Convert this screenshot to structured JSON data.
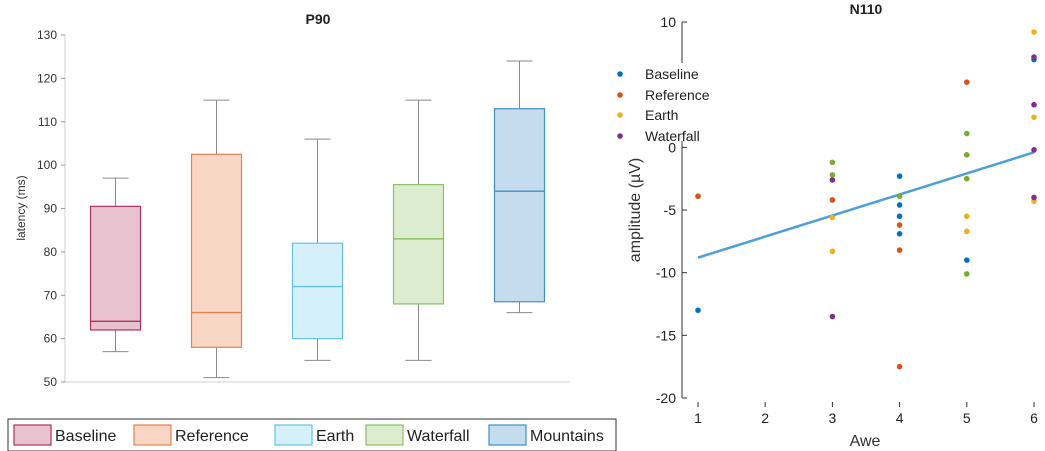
{
  "chart_data": [
    {
      "type": "box",
      "title": "P90",
      "ylabel": "latency (ms)",
      "ylim": [
        50,
        130
      ],
      "yticks": [
        50,
        60,
        70,
        80,
        90,
        100,
        110,
        120,
        130
      ],
      "grid": false,
      "legend_position": "bottom",
      "categories": [
        "Baseline",
        "Reference",
        "Earth",
        "Waterfall",
        "Mountains"
      ],
      "boxes": [
        {
          "name": "Baseline",
          "min": 57,
          "q1": 62,
          "median": 64,
          "q3": 90.5,
          "max": 97,
          "color": "#b5315a",
          "fill": "#e8c3cf"
        },
        {
          "name": "Reference",
          "min": 51,
          "q1": 58,
          "median": 66,
          "q3": 102.5,
          "max": 115,
          "color": "#e8804f",
          "fill": "#f8d6c6"
        },
        {
          "name": "Earth",
          "min": 55,
          "q1": 60,
          "median": 72,
          "q3": 82,
          "max": 106,
          "color": "#63c2e6",
          "fill": "#d6f0fb"
        },
        {
          "name": "Waterfall",
          "min": 55,
          "q1": 68,
          "median": 83,
          "q3": 95.5,
          "max": 115,
          "color": "#8cc063",
          "fill": "#dcedcf"
        },
        {
          "name": "Mountains",
          "min": 66,
          "q1": 68.5,
          "median": 94,
          "q3": 113,
          "max": 124,
          "color": "#3f8fc4",
          "fill": "#c4dcee"
        }
      ]
    },
    {
      "type": "scatter",
      "title": "N110",
      "xlabel": "Awe",
      "ylabel": "amplitude (µV)",
      "xlim": [
        1,
        6
      ],
      "ylim": [
        -20,
        10
      ],
      "xticks": [
        1,
        2,
        3,
        4,
        5,
        6
      ],
      "yticks": [
        -20,
        -15,
        -10,
        -5,
        0,
        5,
        10
      ],
      "grid": false,
      "legend_position": "top-left",
      "series": [
        {
          "name": "Baseline",
          "color": "#0072bd",
          "points": [
            [
              1,
              -13
            ],
            [
              4,
              -2.3
            ],
            [
              4,
              -4.6
            ],
            [
              4,
              -5.5
            ],
            [
              4,
              -6.9
            ],
            [
              5,
              -9
            ],
            [
              6,
              7
            ]
          ]
        },
        {
          "name": "Reference",
          "color": "#d95319",
          "points": [
            [
              1,
              -3.9
            ],
            [
              3,
              -4.2
            ],
            [
              4,
              -6.2
            ],
            [
              4,
              -8.2
            ],
            [
              4,
              -17.5
            ],
            [
              5,
              5.2
            ]
          ]
        },
        {
          "name": "Earth",
          "color": "#edb120",
          "points": [
            [
              3,
              -5.6
            ],
            [
              3,
              -8.3
            ],
            [
              5,
              -5.5
            ],
            [
              5,
              -6.7
            ],
            [
              6,
              9.2
            ],
            [
              6,
              2.4
            ],
            [
              6,
              -4.3
            ]
          ]
        },
        {
          "name": "Waterfall",
          "color": "#7e2f8e",
          "points": [
            [
              3,
              -2.6
            ],
            [
              3,
              -13.5
            ],
            [
              6,
              7.2
            ],
            [
              6,
              3.4
            ],
            [
              6,
              -0.2
            ],
            [
              6,
              -4
            ]
          ]
        },
        {
          "name": "",
          "color": "#77ac30",
          "points": [
            [
              3,
              -1.2
            ],
            [
              3,
              -2.2
            ],
            [
              4,
              -3.9
            ],
            [
              5,
              1.1
            ],
            [
              5,
              -0.6
            ],
            [
              5,
              -2.5
            ],
            [
              5,
              -10.1
            ]
          ]
        }
      ],
      "fit_line": {
        "color": "#4d9fd6",
        "points": [
          [
            1,
            -8.8
          ],
          [
            6,
            -0.4
          ]
        ]
      }
    }
  ]
}
